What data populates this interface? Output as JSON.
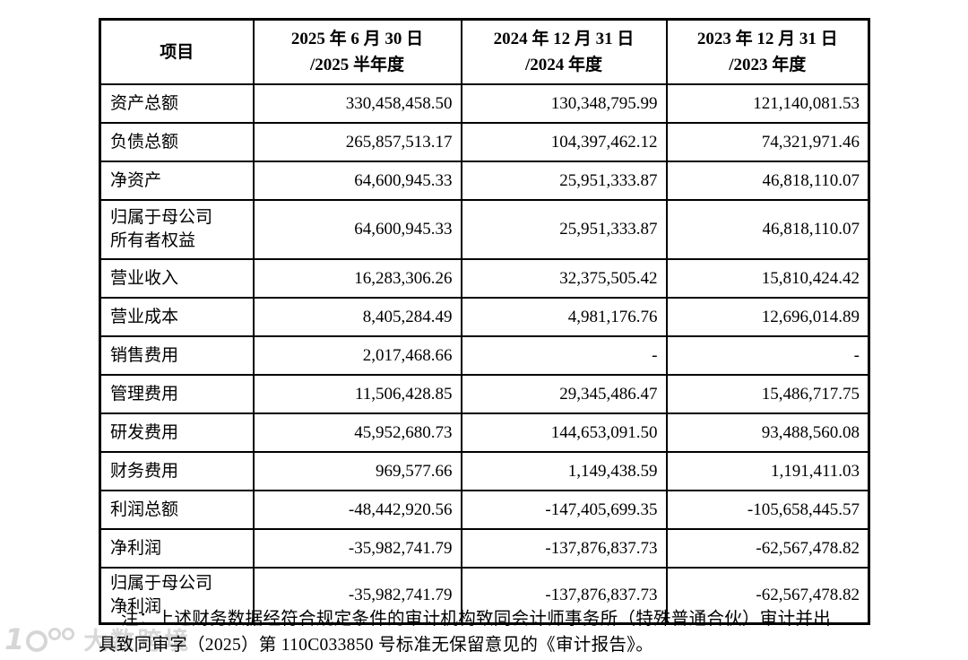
{
  "table": {
    "header": {
      "item": "项目",
      "p2025": {
        "line1": "2025 年 6 月 30 日",
        "line2": "/2025 半年度"
      },
      "p2024": {
        "line1": "2024 年 12 月 31 日",
        "line2": "/2024 年度"
      },
      "p2023": {
        "line1": "2023 年 12 月 31 日",
        "line2": "/2023 年度"
      }
    },
    "rows": [
      {
        "label": "资产总额",
        "p2025": "330,458,458.50",
        "p2024": "130,348,795.99",
        "p2023": "121,140,081.53"
      },
      {
        "label": "负债总额",
        "p2025": "265,857,513.17",
        "p2024": "104,397,462.12",
        "p2023": "74,321,971.46"
      },
      {
        "label": "净资产",
        "p2025": "64,600,945.33",
        "p2024": "25,951,333.87",
        "p2023": "46,818,110.07"
      },
      {
        "label": "归属于母公司",
        "label2": "所有者权益",
        "p2025": "64,600,945.33",
        "p2024": "25,951,333.87",
        "p2023": "46,818,110.07"
      },
      {
        "label": "营业收入",
        "p2025": "16,283,306.26",
        "p2024": "32,375,505.42",
        "p2023": "15,810,424.42"
      },
      {
        "label": "营业成本",
        "p2025": "8,405,284.49",
        "p2024": "4,981,176.76",
        "p2023": "12,696,014.89"
      },
      {
        "label": "销售费用",
        "p2025": "2,017,468.66",
        "p2024": "-",
        "p2023": "-"
      },
      {
        "label": "管理费用",
        "p2025": "11,506,428.85",
        "p2024": "29,345,486.47",
        "p2023": "15,486,717.75"
      },
      {
        "label": "研发费用",
        "p2025": "45,952,680.73",
        "p2024": "144,653,091.50",
        "p2023": "93,488,560.08"
      },
      {
        "label": "财务费用",
        "p2025": "969,577.66",
        "p2024": "1,149,438.59",
        "p2023": "1,191,411.03"
      },
      {
        "label": "利润总额",
        "p2025": "-48,442,920.56",
        "p2024": "-147,405,699.35",
        "p2023": "-105,658,445.57"
      },
      {
        "label": "净利润",
        "p2025": "-35,982,741.79",
        "p2024": "-137,876,837.73",
        "p2023": "-62,567,478.82"
      },
      {
        "label": "归属于母公司",
        "label2": "净利润",
        "p2025": "-35,982,741.79",
        "p2024": "-137,876,837.73",
        "p2023": "-62,567,478.82"
      }
    ]
  },
  "note": {
    "line1": "注：上述财务数据经符合规定条件的审计机构致同会计师事务所（特殊普通合伙）审计并出",
    "line2": "具致同审字（2025）第 110C033850 号标准无保留意见的《审计报告》。"
  },
  "watermark": {
    "brand": "大数跨境",
    "logo_digit": "1"
  }
}
